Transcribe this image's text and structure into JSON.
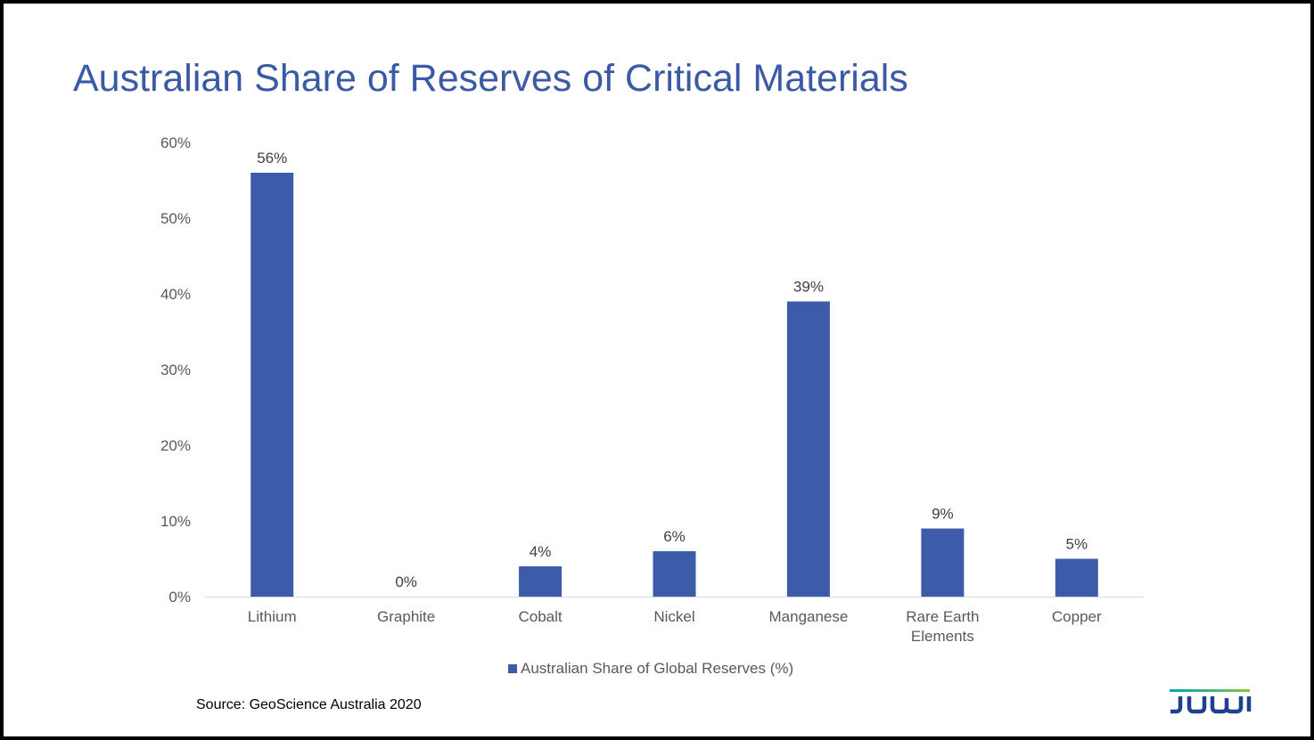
{
  "slide": {
    "title": "Australian Share of Reserves of Critical Materials",
    "source": "Source: GeoScience Australia 2020",
    "logo_text": "JUWI"
  },
  "colors": {
    "title": "#3a5aa6",
    "bar": "#3c5ca9",
    "axis_text": "#595959",
    "baseline": "#d9d9d9",
    "logo_navy": "#1f3f8f",
    "logo_green": "#8dc63f",
    "logo_teal": "#00a3b4"
  },
  "chart_data": {
    "type": "bar",
    "title": "Australian Share of Reserves of Critical Materials",
    "categories": [
      "Lithium",
      "Graphite",
      "Cobalt",
      "Nickel",
      "Manganese",
      "Rare Earth Elements",
      "Copper"
    ],
    "category_lines": [
      [
        "Lithium"
      ],
      [
        "Graphite"
      ],
      [
        "Cobalt"
      ],
      [
        "Nickel"
      ],
      [
        "Manganese"
      ],
      [
        "Rare Earth",
        "Elements"
      ],
      [
        "Copper"
      ]
    ],
    "series": [
      {
        "name": "Australian Share of Global Reserves (%)",
        "values": [
          56,
          0,
          4,
          6,
          39,
          9,
          5
        ],
        "labels": [
          "56%",
          "0%",
          "4%",
          "6%",
          "39%",
          "9%",
          "5%"
        ]
      }
    ],
    "ylim": [
      0,
      60
    ],
    "yticks": [
      0,
      10,
      20,
      30,
      40,
      50,
      60
    ],
    "ytick_labels": [
      "0%",
      "10%",
      "20%",
      "30%",
      "40%",
      "50%",
      "60%"
    ],
    "xlabel": "",
    "ylabel": "",
    "grid": false,
    "legend_position": "bottom"
  }
}
